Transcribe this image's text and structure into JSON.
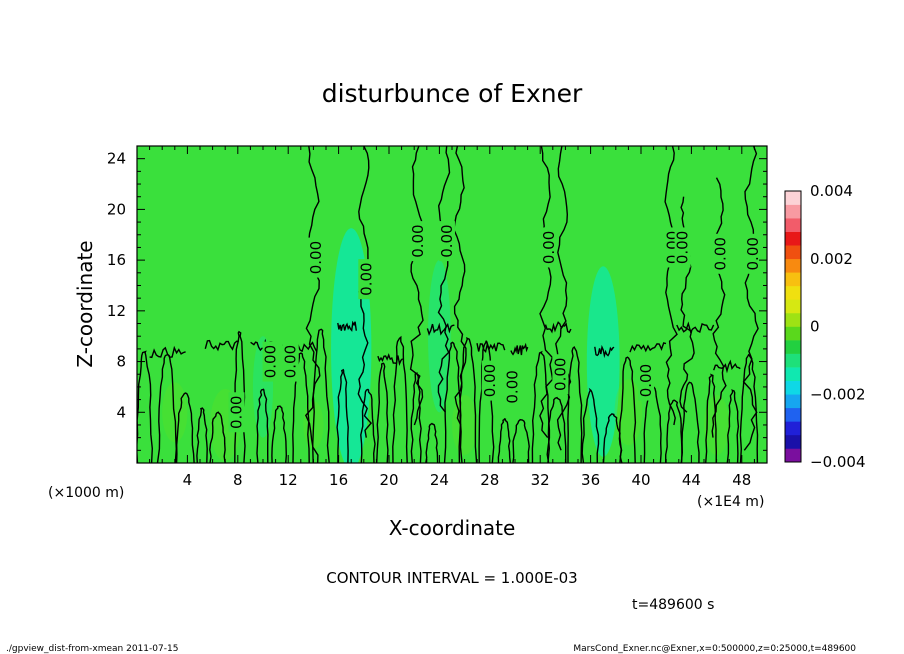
{
  "chart_data": {
    "type": "heatmap",
    "title": "disturbunce of Exner",
    "xlabel": "X-coordinate",
    "ylabel": "Z-coordinate",
    "x_unit_left": "(×1000 m)",
    "x_unit_right": "(×1E4 m)",
    "xlim": [
      0,
      50
    ],
    "ylim": [
      0,
      25
    ],
    "x_ticks": [
      4,
      8,
      12,
      16,
      20,
      24,
      28,
      32,
      36,
      40,
      44,
      48
    ],
    "y_ticks": [
      4,
      8,
      12,
      16,
      20,
      24
    ],
    "colorbar": {
      "min": -0.004,
      "max": 0.004,
      "labels": [
        {
          "value": 0.004,
          "text": "0.004"
        },
        {
          "value": 0.002,
          "text": "0.002"
        },
        {
          "value": 0,
          "text": "0"
        },
        {
          "value": -0.002,
          "text": "−0.002"
        },
        {
          "value": -0.004,
          "text": "−0.004"
        }
      ],
      "colors": [
        "#7a0f9e",
        "#1a10a8",
        "#2020d8",
        "#1f62f0",
        "#16a6f0",
        "#0fd8e6",
        "#10e8b0",
        "#1ee07a",
        "#22d040",
        "#5ad81c",
        "#9ee214",
        "#d6e812",
        "#f0e010",
        "#f8c010",
        "#f88a10",
        "#f05010",
        "#e81818",
        "#f25c6a",
        "#f89aa2",
        "#fcd2d6"
      ]
    },
    "contour_labels": [
      {
        "text": "0.00",
        "x": 14.2,
        "y": 16.2
      },
      {
        "text": "0.00",
        "x": 18.2,
        "y": 14.5
      },
      {
        "text": "0.00",
        "x": 22.3,
        "y": 17.5
      },
      {
        "text": "0.00",
        "x": 24.6,
        "y": 17.5
      },
      {
        "text": "0.00",
        "x": 32.7,
        "y": 17.0
      },
      {
        "text": "0.00",
        "x": 42.5,
        "y": 17.0
      },
      {
        "text": "0.00",
        "x": 43.3,
        "y": 17.0
      },
      {
        "text": "0.00",
        "x": 46.3,
        "y": 16.5
      },
      {
        "text": "0.00",
        "x": 48.9,
        "y": 16.5
      },
      {
        "text": "0.00",
        "x": 7.9,
        "y": 4.0
      },
      {
        "text": "0.00",
        "x": 10.6,
        "y": 8.0
      },
      {
        "text": "0.00",
        "x": 12.2,
        "y": 8.0
      },
      {
        "text": "0.00",
        "x": 28.0,
        "y": 6.5
      },
      {
        "text": "0.00",
        "x": 29.8,
        "y": 6.0
      },
      {
        "text": "0.00",
        "x": 33.6,
        "y": 7.0
      },
      {
        "text": "0.00",
        "x": 40.4,
        "y": 6.5
      }
    ],
    "contour_interval": "CONTOUR INTERVAL = 1.000E-03",
    "time_label": "t=489600 s"
  },
  "footer": {
    "left": "./gpview_dist-from-xmean  2011-07-15",
    "right": "MarsCond_Exner.nc@Exner,x=0:500000,z=0:25000,t=489600"
  },
  "colors": {
    "field_background": "#3ae03c",
    "contour_line": "#000000",
    "weak_negative": "#12e8a0",
    "weak_positive": "#5ee022"
  }
}
